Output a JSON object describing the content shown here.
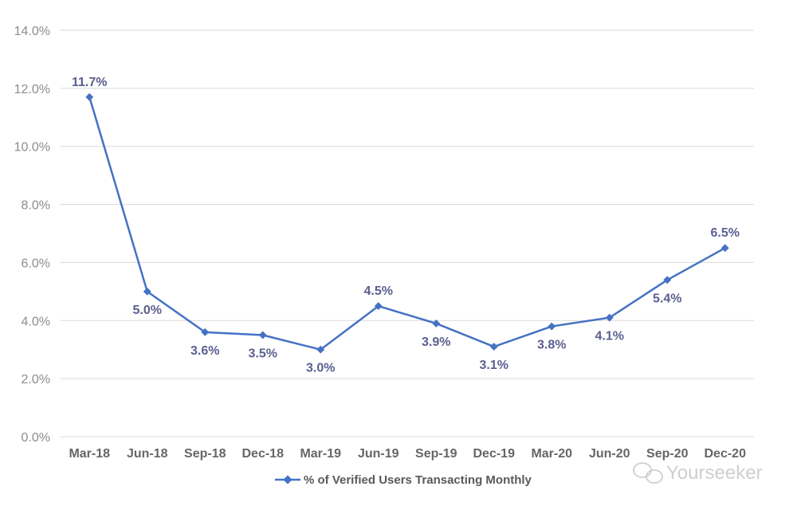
{
  "chart_data": {
    "type": "line",
    "categories": [
      "Mar-18",
      "Jun-18",
      "Sep-18",
      "Dec-18",
      "Mar-19",
      "Jun-19",
      "Sep-19",
      "Dec-19",
      "Mar-20",
      "Jun-20",
      "Sep-20",
      "Dec-20"
    ],
    "series": [
      {
        "name": "% of Verified Users Transacting Monthly",
        "values": [
          11.7,
          5.0,
          3.6,
          3.5,
          3.0,
          4.5,
          3.9,
          3.1,
          3.8,
          4.1,
          5.4,
          6.5
        ],
        "labels": [
          "11.7%",
          "5.0%",
          "3.6%",
          "3.5%",
          "3.0%",
          "4.5%",
          "3.9%",
          "3.1%",
          "3.8%",
          "4.1%",
          "5.4%",
          "6.5%"
        ],
        "color": "#4472c4"
      }
    ],
    "yticks": [
      0,
      2,
      4,
      6,
      8,
      10,
      12,
      14
    ],
    "ytick_labels": [
      "0.0%",
      "2.0%",
      "4.0%",
      "6.0%",
      "8.0%",
      "10.0%",
      "12.0%",
      "14.0%"
    ],
    "ylim": [
      0,
      14
    ],
    "grid": true,
    "legend": "bottom",
    "colors": {
      "gridline": "#d9d9d9",
      "label": "#5b5f8f"
    }
  },
  "watermark": {
    "text": "Yourseeker",
    "icon": "chat-bubbles-icon"
  }
}
